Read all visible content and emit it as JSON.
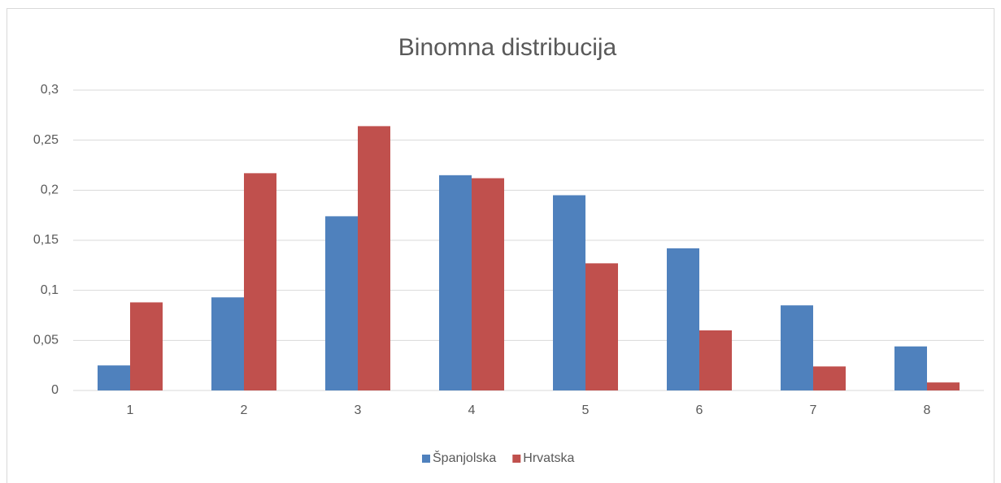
{
  "chart_data": {
    "type": "bar",
    "title": "Binomna distribucija",
    "categories": [
      "1",
      "2",
      "3",
      "4",
      "5",
      "6",
      "7",
      "8"
    ],
    "series": [
      {
        "name": "Španjolska",
        "color": "#4f81bd",
        "values": [
          0.025,
          0.093,
          0.174,
          0.215,
          0.195,
          0.142,
          0.085,
          0.044
        ]
      },
      {
        "name": "Hrvatska",
        "color": "#c0504d",
        "values": [
          0.088,
          0.217,
          0.264,
          0.212,
          0.127,
          0.06,
          0.024,
          0.008
        ]
      }
    ],
    "ylim": [
      0,
      0.3
    ],
    "yticks": [
      0,
      {
        "value": 0.05,
        "label": "0,05"
      },
      {
        "value": 0.1,
        "label": "0,1"
      },
      {
        "value": 0.15,
        "label": "0,15"
      },
      {
        "value": 0.2,
        "label": "0,2"
      },
      {
        "value": 0.25,
        "label": "0,25"
      },
      {
        "value": 0.3,
        "label": "0,3"
      }
    ],
    "grid": true,
    "legend": "bottom"
  }
}
